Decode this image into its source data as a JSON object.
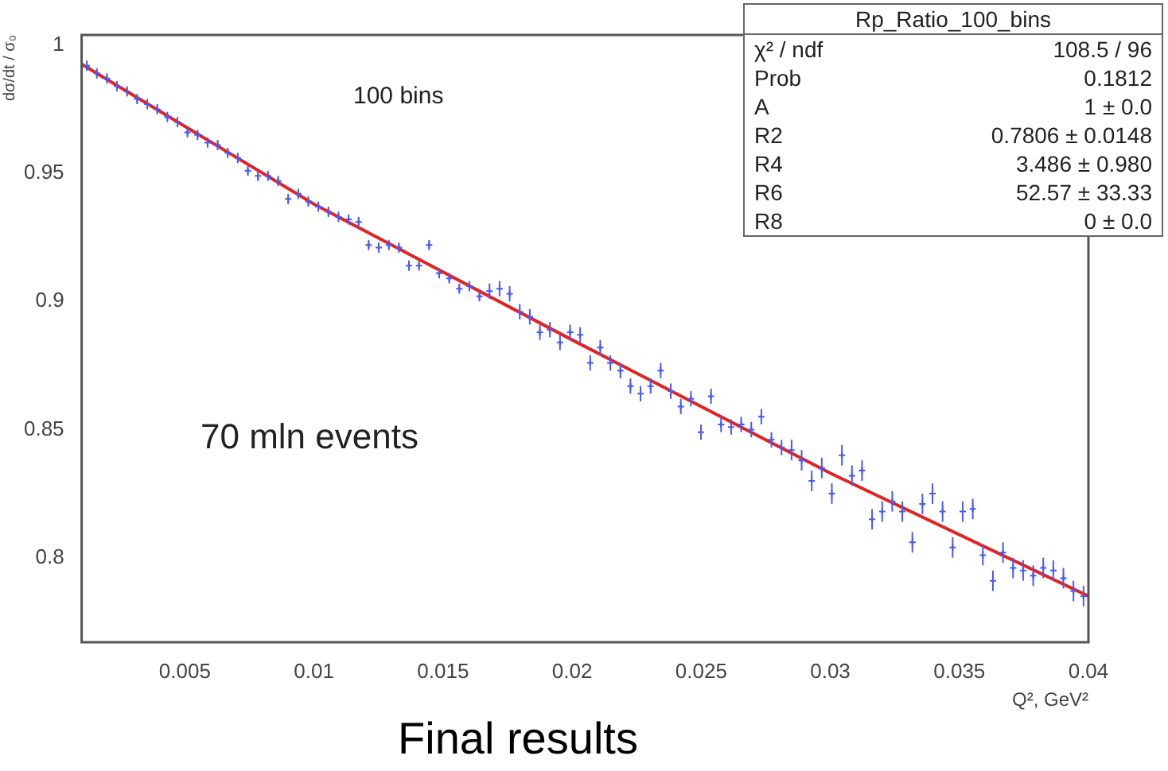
{
  "chart_data": {
    "type": "scatter",
    "xlabel": "Q², GeV²",
    "ylabel": "dσ/dt / σ₀",
    "xlim": [
      0.001,
      0.04
    ],
    "ylim": [
      0.767,
      1.004
    ],
    "xticks": [
      0.005,
      0.01,
      0.015,
      0.02,
      0.025,
      0.03,
      0.035,
      0.04
    ],
    "yticks": [
      0.8,
      0.85,
      0.9,
      0.95,
      {
        "value": 1,
        "label": "1"
      }
    ],
    "grid": false,
    "legend": false,
    "annotations": [
      "100 bins",
      "70 mln events",
      "Final results",
      "Rp_Ratio_100_bins",
      "χ² / ndf",
      "108.5 / 96",
      "Prob",
      "0.1812",
      "A",
      "1 ± 0.0",
      "R2",
      "0.7806 ± 0.0148",
      "R4",
      "3.486 ± 0.980",
      "R6",
      "52.57 ± 33.33",
      "R8",
      "0 ± 0.0"
    ],
    "series": [
      {
        "color": "#4a5af0",
        "marker": "cross",
        "x": [
          0.0012,
          0.00159,
          0.00198,
          0.00237,
          0.00276,
          0.00315,
          0.00354,
          0.00393,
          0.00432,
          0.00471,
          0.0051,
          0.00549,
          0.00588,
          0.00627,
          0.00666,
          0.00705,
          0.00744,
          0.00783,
          0.00822,
          0.00861,
          0.009,
          0.00939,
          0.00978,
          0.01017,
          0.01056,
          0.01095,
          0.01134,
          0.01173,
          0.01212,
          0.01251,
          0.0129,
          0.01329,
          0.01368,
          0.01407,
          0.01446,
          0.01485,
          0.01524,
          0.01563,
          0.01602,
          0.01641,
          0.0168,
          0.01719,
          0.01758,
          0.01797,
          0.01836,
          0.01875,
          0.01914,
          0.01953,
          0.01992,
          0.02031,
          0.0207,
          0.02109,
          0.02148,
          0.02187,
          0.02226,
          0.02265,
          0.02304,
          0.02343,
          0.02382,
          0.02421,
          0.0246,
          0.02499,
          0.02538,
          0.02577,
          0.02616,
          0.02655,
          0.02694,
          0.02733,
          0.02772,
          0.02811,
          0.0285,
          0.02889,
          0.02928,
          0.02967,
          0.03006,
          0.03045,
          0.03084,
          0.03123,
          0.03162,
          0.03201,
          0.0324,
          0.03279,
          0.03318,
          0.03357,
          0.03396,
          0.03435,
          0.03474,
          0.03513,
          0.03552,
          0.03591,
          0.0363,
          0.03669,
          0.03708,
          0.03747,
          0.03786,
          0.03825,
          0.03864,
          0.03903,
          0.03942,
          0.03981
        ],
        "values": [
          0.992,
          0.989,
          0.987,
          0.984,
          0.982,
          0.979,
          0.977,
          0.975,
          0.972,
          0.97,
          0.966,
          0.965,
          0.962,
          0.961,
          0.958,
          0.956,
          0.951,
          0.949,
          0.949,
          0.947,
          0.94,
          0.942,
          0.939,
          0.937,
          0.935,
          0.933,
          0.932,
          0.931,
          0.922,
          0.921,
          0.922,
          0.921,
          0.914,
          0.914,
          0.922,
          0.911,
          0.909,
          0.905,
          0.906,
          0.902,
          0.904,
          0.905,
          0.903,
          0.896,
          0.894,
          0.888,
          0.889,
          0.884,
          0.888,
          0.887,
          0.876,
          0.882,
          0.876,
          0.873,
          0.867,
          0.864,
          0.867,
          0.873,
          0.865,
          0.859,
          0.862,
          0.849,
          0.863,
          0.852,
          0.851,
          0.852,
          0.85,
          0.855,
          0.846,
          0.843,
          0.842,
          0.838,
          0.83,
          0.835,
          0.825,
          0.84,
          0.832,
          0.834,
          0.815,
          0.818,
          0.822,
          0.818,
          0.806,
          0.821,
          0.825,
          0.818,
          0.804,
          0.818,
          0.819,
          0.801,
          0.791,
          0.802,
          0.796,
          0.795,
          0.793,
          0.796,
          0.795,
          0.792,
          0.787,
          0.785
        ],
        "errors": [
          0.002,
          0.002,
          0.002,
          0.002,
          0.002,
          0.002,
          0.002,
          0.002,
          0.002,
          0.002,
          0.002,
          0.002,
          0.002,
          0.002,
          0.002,
          0.002,
          0.002,
          0.002,
          0.002,
          0.002,
          0.002,
          0.002,
          0.002,
          0.002,
          0.002,
          0.002,
          0.002,
          0.002,
          0.002,
          0.002,
          0.002,
          0.002,
          0.002,
          0.002,
          0.002,
          0.002,
          0.002,
          0.002,
          0.002,
          0.002,
          0.003,
          0.003,
          0.003,
          0.003,
          0.003,
          0.003,
          0.003,
          0.003,
          0.003,
          0.003,
          0.003,
          0.003,
          0.003,
          0.003,
          0.003,
          0.003,
          0.003,
          0.003,
          0.003,
          0.003,
          0.003,
          0.003,
          0.003,
          0.003,
          0.003,
          0.003,
          0.003,
          0.003,
          0.003,
          0.003,
          0.004,
          0.004,
          0.004,
          0.004,
          0.004,
          0.004,
          0.004,
          0.004,
          0.004,
          0.004,
          0.004,
          0.004,
          0.004,
          0.004,
          0.004,
          0.004,
          0.004,
          0.004,
          0.004,
          0.004,
          0.004,
          0.004,
          0.004,
          0.004,
          0.004,
          0.004,
          0.004,
          0.004,
          0.004,
          0.004
        ]
      },
      {
        "type": "line",
        "color": "#e02424",
        "x": [
          0.001,
          0.01,
          0.02,
          0.03,
          0.04
        ],
        "values": [
          0.9926,
          0.938,
          0.885,
          0.833,
          0.785
        ]
      }
    ]
  }
}
